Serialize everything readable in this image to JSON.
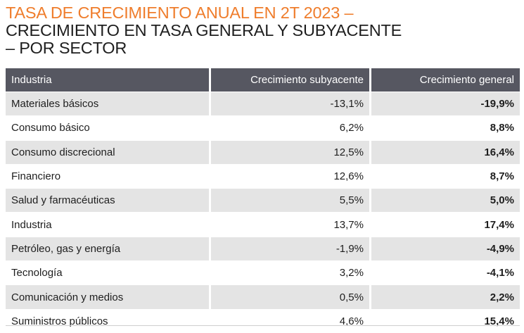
{
  "title": {
    "line1": "TASA DE CRECIMIENTO ANUAL EN 2T 2023 –",
    "line2": "CRECIMIENTO EN TASA GENERAL Y SUBYACENTE",
    "line3": "– POR SECTOR"
  },
  "colors": {
    "accent": "#ef7d2c",
    "header_bg": "#565761",
    "stripe": "#e4e4e4"
  },
  "table": {
    "headers": [
      "Industria",
      "Crecimiento subyacente",
      "Crecimiento general"
    ],
    "rows": [
      {
        "sector": "Materiales básicos",
        "subyacente": "-13,1%",
        "general": "-19,9%"
      },
      {
        "sector": "Consumo básico",
        "subyacente": "6,2%",
        "general": "8,8%"
      },
      {
        "sector": "Consumo discrecional",
        "subyacente": "12,5%",
        "general": "16,4%"
      },
      {
        "sector": "Financiero",
        "subyacente": "12,6%",
        "general": "8,7%"
      },
      {
        "sector": "Salud y farmacéuticas",
        "subyacente": "5,5%",
        "general": "5,0%"
      },
      {
        "sector": "Industria",
        "subyacente": "13,7%",
        "general": "17,4%"
      },
      {
        "sector": "Petróleo, gas y energía",
        "subyacente": "-1,9%",
        "general": "-4,9%"
      },
      {
        "sector": "Tecnología",
        "subyacente": "3,2%",
        "general": "-4,1%"
      },
      {
        "sector": "Comunicación y medios",
        "subyacente": "0,5%",
        "general": "2,2%"
      },
      {
        "sector": "Suministros públicos",
        "subyacente": "4,6%",
        "general": "15,4%"
      }
    ]
  }
}
